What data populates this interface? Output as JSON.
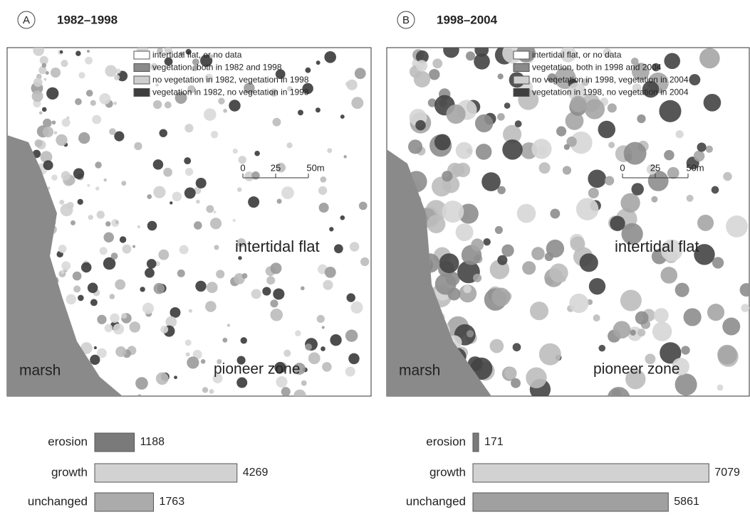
{
  "panels": [
    {
      "label": "A",
      "title": "1982–1998",
      "legend": [
        "intertidal flat, or no data",
        "vegetation, both in 1982 and 1998",
        "no vegetation in 1982, vegetation in 1998",
        "vegetation in 1982, no vegetation in 1998"
      ],
      "scale": [
        "0",
        "25",
        "50m"
      ],
      "map_labels": {
        "intertidal": "intertidal flat",
        "marsh": "marsh",
        "pioneer": "pioneer zone"
      }
    },
    {
      "label": "B",
      "title": "1998–2004",
      "legend": [
        "intertidal flat, or no data",
        "vegetation, both in 1998 and 2004",
        "no vegetation in 1998, vegetation in 2004",
        "vegetation in 1998, no vegetation in 2004"
      ],
      "scale": [
        "0",
        "25",
        "50m"
      ],
      "map_labels": {
        "intertidal": "intertidal flat",
        "marsh": "marsh",
        "pioneer": "pioneer zone"
      }
    }
  ],
  "chart_data": [
    {
      "type": "bar",
      "orientation": "horizontal",
      "categories": [
        "erosion",
        "growth",
        "unchanged"
      ],
      "values": [
        1188,
        4269,
        1763
      ],
      "colors": [
        "#7a7a7a",
        "#d2d2d2",
        "#ababab"
      ]
    },
    {
      "type": "bar",
      "orientation": "horizontal",
      "categories": [
        "erosion",
        "growth",
        "unchanged"
      ],
      "values": [
        171,
        7079,
        5861
      ],
      "colors": [
        "#7a7a7a",
        "#d2d2d2",
        "#a0a0a0"
      ]
    }
  ]
}
